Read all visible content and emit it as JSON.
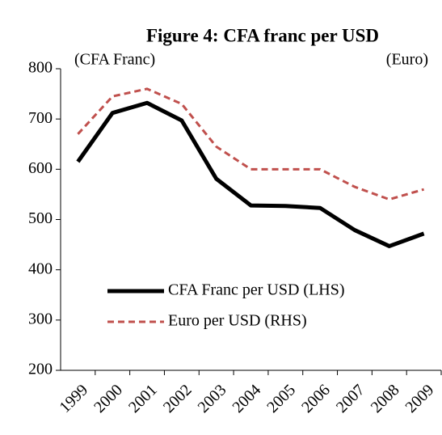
{
  "chart_data": {
    "type": "line",
    "title": "Figure 4: CFA franc per USD",
    "y_label": "(CFA Franc)",
    "y2_label": "(Euro)",
    "categories": [
      "1999",
      "2000",
      "2001",
      "2002",
      "2003",
      "2004",
      "2005",
      "2006",
      "2007",
      "2008",
      "2009"
    ],
    "series": [
      {
        "name": "CFA Franc per USD (LHS)",
        "color": "#000000",
        "dash": false,
        "values": [
          615,
          712,
          732,
          697,
          581,
          528,
          527,
          523,
          479,
          447,
          472
        ]
      },
      {
        "name": "Euro per USD (RHS)",
        "color": "#c0504d",
        "dash": true,
        "axis": "y2",
        "values": [
          0.94,
          1.09,
          1.12,
          1.06,
          0.89,
          0.8,
          0.8,
          0.8,
          0.73,
          0.68,
          0.72
        ]
      }
    ],
    "ylim": [
      200,
      800
    ],
    "yticks": [
      200,
      300,
      400,
      500,
      600,
      700,
      800
    ],
    "y2lim": [
      0,
      1.2
    ],
    "grid": false
  }
}
